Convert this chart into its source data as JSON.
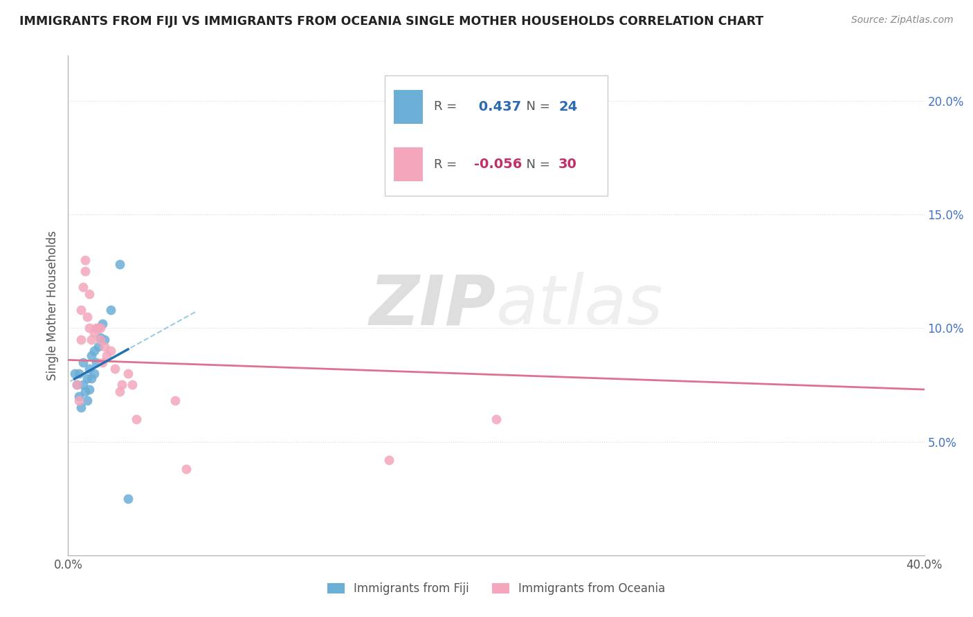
{
  "title": "IMMIGRANTS FROM FIJI VS IMMIGRANTS FROM OCEANIA SINGLE MOTHER HOUSEHOLDS CORRELATION CHART",
  "source": "Source: ZipAtlas.com",
  "ylabel": "Single Mother Households",
  "xlim": [
    0.0,
    0.4
  ],
  "ylim": [
    0.0,
    0.22
  ],
  "ytick_vals": [
    0.05,
    0.1,
    0.15,
    0.2
  ],
  "ytick_labels": [
    "5.0%",
    "10.0%",
    "15.0%",
    "20.0%"
  ],
  "xtick_vals": [
    0.0,
    0.1,
    0.2,
    0.3,
    0.4
  ],
  "xtick_labels": [
    "0.0%",
    "",
    "",
    "",
    "40.0%"
  ],
  "fiji_R": 0.437,
  "fiji_N": 24,
  "oceania_R": -0.056,
  "oceania_N": 30,
  "fiji_color": "#6baed6",
  "oceania_color": "#f4a6bc",
  "fiji_line_color": "#2171b5",
  "oceania_line_color": "#e07090",
  "fiji_dashed_color": "#9ecae1",
  "fiji_points_x": [
    0.003,
    0.004,
    0.005,
    0.005,
    0.006,
    0.007,
    0.007,
    0.008,
    0.009,
    0.009,
    0.01,
    0.01,
    0.011,
    0.011,
    0.012,
    0.012,
    0.013,
    0.014,
    0.015,
    0.016,
    0.017,
    0.02,
    0.024,
    0.028
  ],
  "fiji_points_y": [
    0.08,
    0.075,
    0.07,
    0.08,
    0.065,
    0.075,
    0.085,
    0.072,
    0.068,
    0.078,
    0.073,
    0.082,
    0.078,
    0.088,
    0.08,
    0.09,
    0.085,
    0.092,
    0.096,
    0.102,
    0.095,
    0.108,
    0.128,
    0.025
  ],
  "oceania_points_x": [
    0.004,
    0.005,
    0.006,
    0.006,
    0.007,
    0.008,
    0.008,
    0.009,
    0.01,
    0.01,
    0.011,
    0.012,
    0.013,
    0.014,
    0.015,
    0.015,
    0.016,
    0.017,
    0.018,
    0.02,
    0.022,
    0.024,
    0.025,
    0.028,
    0.03,
    0.032,
    0.05,
    0.055,
    0.15,
    0.2
  ],
  "oceania_points_y": [
    0.075,
    0.068,
    0.095,
    0.108,
    0.118,
    0.125,
    0.13,
    0.105,
    0.1,
    0.115,
    0.095,
    0.098,
    0.1,
    0.1,
    0.095,
    0.1,
    0.085,
    0.092,
    0.088,
    0.09,
    0.082,
    0.072,
    0.075,
    0.08,
    0.075,
    0.06,
    0.068,
    0.038,
    0.042,
    0.06
  ],
  "watermark_zip": "ZIP",
  "watermark_atlas": "atlas",
  "background_color": "#ffffff",
  "grid_color": "#d0d0d0"
}
